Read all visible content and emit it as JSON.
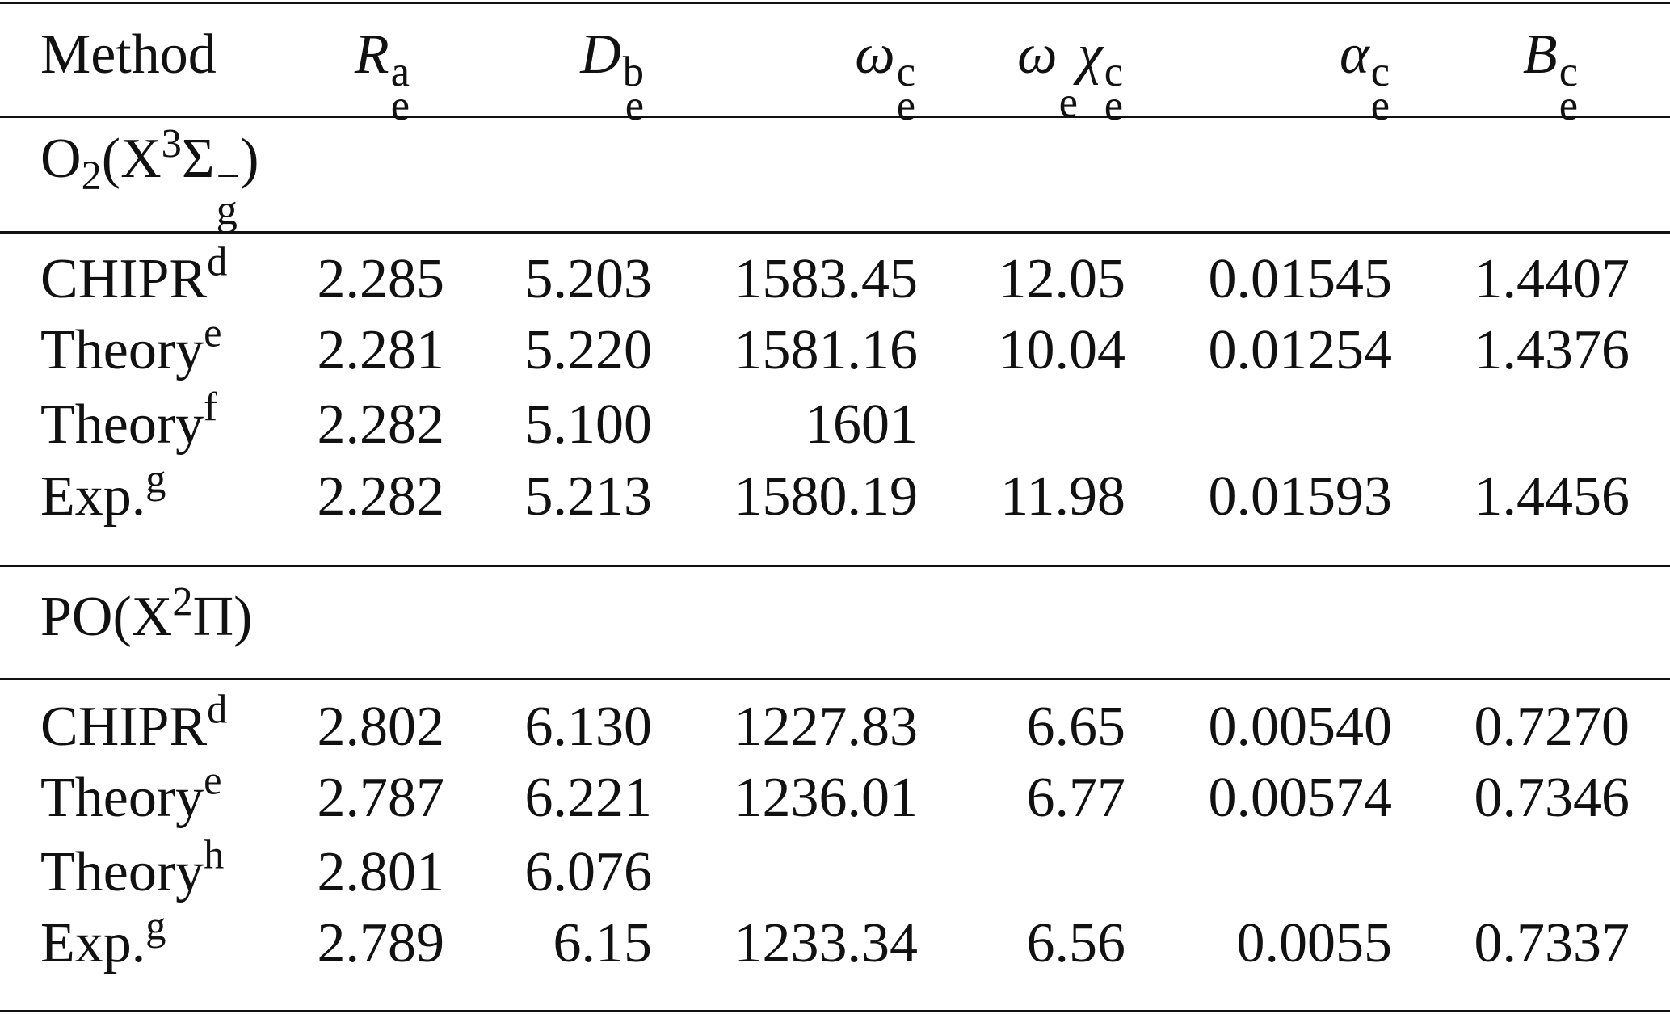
{
  "table": {
    "columns": [
      {
        "base": "Method"
      },
      {
        "base": "R",
        "sub": "e",
        "sup": "a"
      },
      {
        "base": "D",
        "sub": "e",
        "sup": "b"
      },
      {
        "base": "ω",
        "sub": "e",
        "sup": "c"
      },
      {
        "base": "ω",
        "sub": "e",
        "base2": "χ",
        "sub2": "e",
        "sup": "c"
      },
      {
        "base": "α",
        "sub": "e",
        "sup": "c"
      },
      {
        "base": "B",
        "sub": "e",
        "sup": "c"
      }
    ],
    "sections": [
      {
        "title": [
          "O",
          "2",
          "(X",
          "3",
          "Σ",
          "g",
          "−",
          ")"
        ],
        "rows": [
          {
            "method": "CHIPR",
            "note": "d",
            "values": [
              "2.285",
              "5.203",
              "1583.45",
              "12.05",
              "0.01545",
              "1.4407"
            ]
          },
          {
            "method": "Theory",
            "note": "e",
            "values": [
              "2.281",
              "5.220",
              "1581.16",
              "10.04",
              "0.01254",
              "1.4376"
            ]
          },
          {
            "method": "Theory",
            "note": "f",
            "values": [
              "2.282",
              "5.100",
              "1601",
              null,
              null,
              null
            ]
          },
          {
            "method": "Exp.",
            "note": "g",
            "values": [
              "2.282",
              "5.213",
              "1580.19",
              "11.98",
              "0.01593",
              "1.4456"
            ]
          }
        ]
      },
      {
        "title": [
          "PO",
          "(X",
          "2",
          "Π",
          ")"
        ],
        "rows": [
          {
            "method": "CHIPR",
            "note": "d",
            "values": [
              "2.802",
              "6.130",
              "1227.83",
              "6.65",
              "0.00540",
              "0.7270"
            ]
          },
          {
            "method": "Theory",
            "note": "e",
            "values": [
              "2.787",
              "6.221",
              "1236.01",
              "6.77",
              "0.00574",
              "0.7346"
            ]
          },
          {
            "method": "Theory",
            "note": "h",
            "values": [
              "2.801",
              "6.076",
              null,
              null,
              null,
              null
            ]
          },
          {
            "method": "Exp.",
            "note": "g",
            "values": [
              "2.789",
              "6.15",
              "1233.34",
              "6.56",
              "0.0055",
              "0.7337"
            ]
          }
        ]
      }
    ]
  }
}
